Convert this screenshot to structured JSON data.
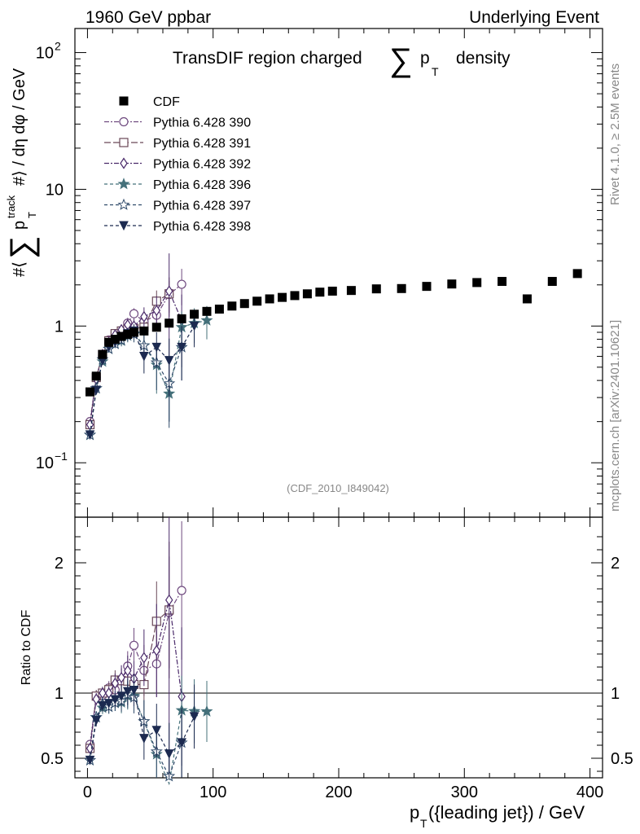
{
  "header": {
    "energy": "1960 GeV ppbar",
    "process": "Underlying Event"
  },
  "side_labels": {
    "rivet": "Rivet 4.1.0, ≥ 2.5M events",
    "mcplots": "mcplots.cern.ch [arXiv:2401.10621]"
  },
  "chart_data": {
    "type": "scatter",
    "analysis_id": "(CDF_2010_I849042)",
    "title_parts": {
      "prefix": "TransDIF region charged",
      "sum": "∑",
      "p": "p",
      "sub": "T",
      "suffix": "density"
    },
    "ylabel": {
      "text": "#⟨ ∑ p_T^track #⟩ / dη dφ / GeV",
      "prefix": "#⟨",
      "sum": "∑",
      "p": "p",
      "sub": "T",
      "sup": "track",
      "suffix": "#⟩ / dη dφ / GeV"
    },
    "xlabel": {
      "text": "p_T({leading jet}) / GeV",
      "p": "p",
      "sub": "T",
      "rest": "({leading jet}) / GeV"
    },
    "ratio_ylabel": "Ratio to CDF",
    "x_range": [
      -10,
      410
    ],
    "y_range_log": [
      0.04,
      150
    ],
    "ratio_range": [
      0.35,
      2.35
    ],
    "x_ticks": [
      "0",
      "100",
      "200",
      "300",
      "400"
    ],
    "y_ticks": [
      {
        "value": 100,
        "base": "10",
        "exp": "2"
      },
      {
        "value": 10,
        "base": "10",
        "exp": ""
      },
      {
        "value": 1,
        "base": "1",
        "exp": ""
      },
      {
        "value": 0.1,
        "base": "10",
        "exp": "−1"
      }
    ],
    "ratio_ticks": [
      "0.5",
      "1",
      "2"
    ],
    "legend": [
      "CDF",
      "Pythia 6.428 390",
      "Pythia 6.428 391",
      "Pythia 6.428 392",
      "Pythia 6.428 396",
      "Pythia 6.428 397",
      "Pythia 6.428 398"
    ],
    "data": {
      "name": "CDF",
      "x": [
        2,
        7,
        12,
        17,
        22,
        27,
        32,
        37,
        45,
        55,
        65,
        75,
        85,
        95,
        105,
        115,
        125,
        135,
        145,
        155,
        165,
        175,
        185,
        195,
        210,
        230,
        250,
        270,
        290,
        310,
        330,
        350,
        370,
        390
      ],
      "y": [
        0.33,
        0.43,
        0.62,
        0.76,
        0.8,
        0.84,
        0.87,
        0.9,
        0.92,
        0.98,
        1.05,
        1.13,
        1.22,
        1.28,
        1.33,
        1.4,
        1.46,
        1.52,
        1.58,
        1.62,
        1.67,
        1.72,
        1.77,
        1.8,
        1.82,
        1.87,
        1.88,
        1.95,
        2.03,
        2.08,
        2.12,
        1.58,
        2.12,
        2.42
      ]
    },
    "series": [
      {
        "name": "Pythia 6.428 390",
        "color": "#6f4a7f",
        "marker": "circle",
        "dash": "6,2,2,2",
        "x": [
          2,
          7,
          12,
          17,
          22,
          27,
          32,
          37,
          45,
          55,
          65,
          75
        ],
        "y": [
          0.2,
          0.42,
          0.61,
          0.79,
          0.82,
          0.92,
          1.05,
          1.23,
          1.08,
          1.2,
          1.7,
          2.02
        ],
        "err": [
          0.01,
          0.02,
          0.03,
          0.04,
          0.06,
          0.08,
          0.1,
          0.12,
          0.18,
          0.25,
          0.45,
          0.6
        ]
      },
      {
        "name": "Pythia 6.428 391",
        "color": "#6a4858",
        "marker": "square",
        "dash": "8,3",
        "x": [
          2,
          7,
          12,
          17,
          22,
          27,
          32,
          37,
          45,
          55,
          65
        ],
        "y": [
          0.19,
          0.42,
          0.62,
          0.78,
          0.88,
          0.92,
          0.95,
          0.96,
          0.98,
          1.52,
          1.72
        ],
        "err": [
          0.01,
          0.02,
          0.03,
          0.04,
          0.06,
          0.08,
          0.1,
          0.12,
          0.18,
          0.3,
          0.55
        ]
      },
      {
        "name": "Pythia 6.428 392",
        "color": "#4a2a6a",
        "marker": "diamond",
        "dash": "6,2,2,2",
        "x": [
          2,
          7,
          12,
          17,
          22,
          27,
          32,
          37,
          45,
          55,
          65,
          75
        ],
        "y": [
          0.19,
          0.41,
          0.62,
          0.76,
          0.86,
          0.94,
          1.02,
          1.0,
          1.17,
          1.3,
          1.8,
          1.1
        ],
        "err": [
          0.01,
          0.02,
          0.03,
          0.04,
          0.06,
          0.08,
          0.1,
          0.12,
          0.2,
          0.35,
          1.6,
          0.6
        ]
      },
      {
        "name": "Pythia 6.428 396",
        "color": "#44707a",
        "marker": "star",
        "dash": "4,3",
        "x": [
          2,
          7,
          12,
          17,
          22,
          27,
          32,
          37,
          45,
          55,
          65,
          75,
          85,
          95
        ],
        "y": [
          0.16,
          0.35,
          0.55,
          0.68,
          0.74,
          0.78,
          0.85,
          0.88,
          0.72,
          0.52,
          0.32,
          0.98,
          1.05,
          1.1
        ],
        "err": [
          0.01,
          0.02,
          0.03,
          0.04,
          0.05,
          0.07,
          0.09,
          0.11,
          0.15,
          0.2,
          0.12,
          0.3,
          0.3,
          0.3
        ]
      },
      {
        "name": "Pythia 6.428 397",
        "color": "#2f4a6a",
        "marker": "openstar",
        "dash": "4,3",
        "x": [
          2,
          7,
          12,
          17,
          22,
          27,
          32,
          37,
          45,
          55,
          65,
          75
        ],
        "y": [
          0.16,
          0.35,
          0.57,
          0.68,
          0.74,
          0.79,
          0.86,
          0.87,
          0.72,
          0.54,
          0.38,
          0.7
        ],
        "err": [
          0.01,
          0.02,
          0.03,
          0.04,
          0.05,
          0.07,
          0.09,
          0.11,
          0.15,
          0.2,
          0.2,
          0.3
        ]
      },
      {
        "name": "Pythia 6.428 398",
        "color": "#1c2a50",
        "marker": "triangle",
        "dash": "4,3",
        "x": [
          2,
          7,
          12,
          17,
          22,
          27,
          32,
          37,
          45,
          55,
          65,
          75,
          85
        ],
        "y": [
          0.16,
          0.34,
          0.56,
          0.7,
          0.76,
          0.82,
          0.88,
          0.92,
          0.6,
          0.7,
          0.56,
          0.7,
          1.0
        ],
        "err": [
          0.01,
          0.02,
          0.03,
          0.04,
          0.05,
          0.07,
          0.09,
          0.11,
          0.15,
          0.2,
          0.25,
          0.3,
          0.3
        ]
      }
    ]
  }
}
